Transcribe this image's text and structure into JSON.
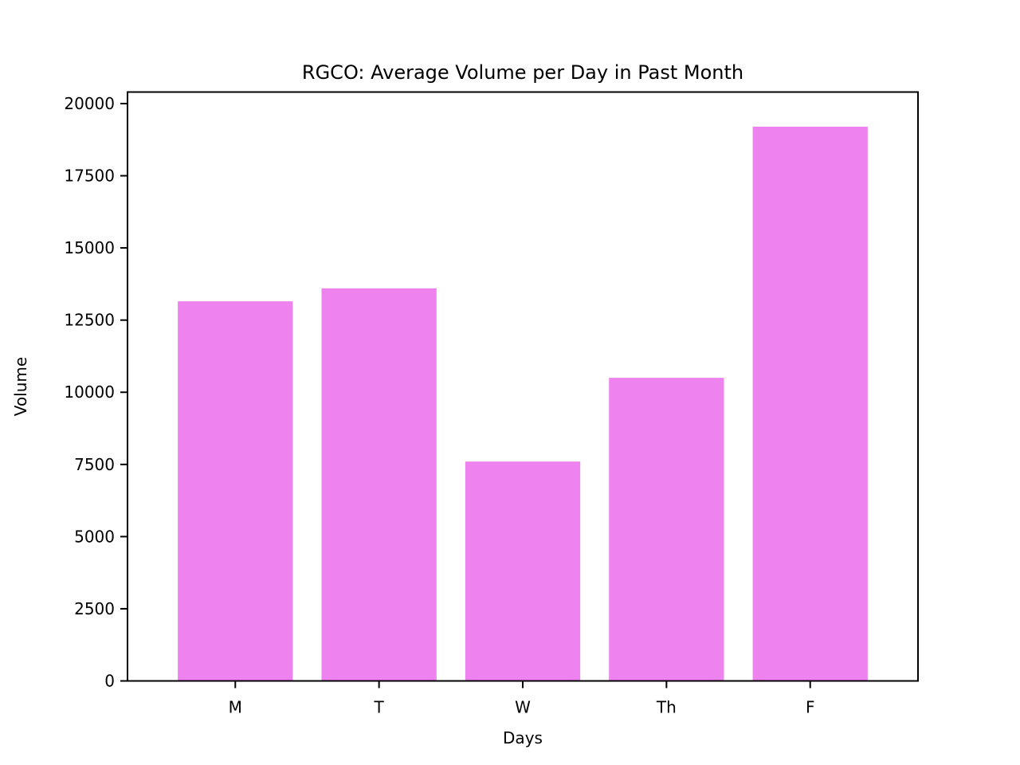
{
  "chart_data": {
    "type": "bar",
    "title": "RGCO: Average Volume per Day in Past Month",
    "xlabel": "Days",
    "ylabel": "Volume",
    "categories": [
      "M",
      "T",
      "W",
      "Th",
      "F"
    ],
    "values": [
      13150,
      13600,
      7600,
      10500,
      19200
    ],
    "ylim": [
      0,
      20000
    ],
    "yticks": [
      0,
      2500,
      5000,
      7500,
      10000,
      12500,
      15000,
      17500,
      20000
    ],
    "bar_color": "#ee82ee",
    "grid": false,
    "legend": "none"
  }
}
